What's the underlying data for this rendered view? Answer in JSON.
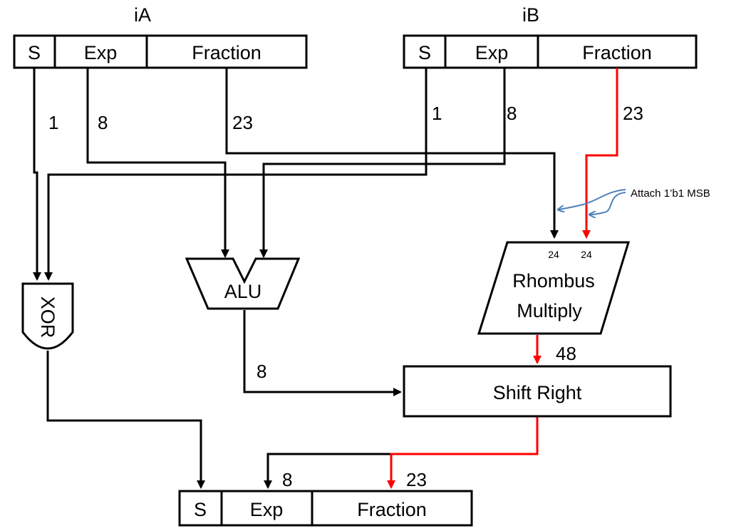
{
  "input_a": {
    "title": "iA",
    "fields": {
      "sign": "S",
      "exp": "Exp",
      "fraction": "Fraction"
    },
    "widths": {
      "sign": "1",
      "exp": "8",
      "fraction": "23"
    }
  },
  "input_b": {
    "title": "iB",
    "fields": {
      "sign": "S",
      "exp": "Exp",
      "fraction": "Fraction"
    },
    "widths": {
      "sign": "1",
      "exp": "8",
      "fraction": "23"
    }
  },
  "blocks": {
    "xor": "XOR",
    "alu": "ALU",
    "multiply_line1": "Rhombus",
    "multiply_line2": "Multiply",
    "multiply_in_a": "24",
    "multiply_in_b": "24",
    "shift": "Shift Right"
  },
  "annotation": "Attach 1’b1 MSB",
  "wires": {
    "alu_out": "8",
    "multiply_out": "48",
    "exp_out": "8",
    "fraction_out": "23"
  },
  "output": {
    "fields": {
      "sign": "S",
      "exp": "Exp",
      "fraction": "Fraction"
    }
  },
  "colors": {
    "wire": "#000000",
    "fraction_path": "#ff0000",
    "annotation_arrow": "#4f81bd"
  }
}
